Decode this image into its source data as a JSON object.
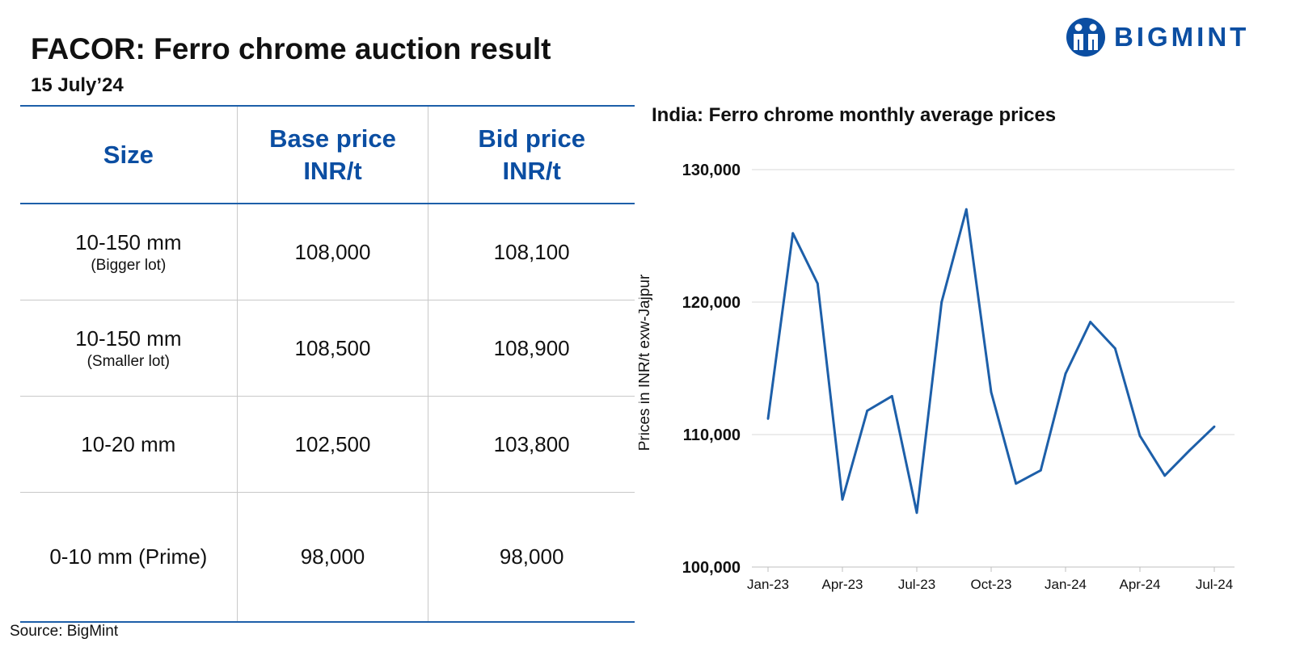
{
  "header": {
    "title": "FACOR: Ferro chrome auction result",
    "subtitle": "15 July’24",
    "brand": "BIGMINT"
  },
  "table": {
    "headers": [
      {
        "line1": "Size",
        "line2": ""
      },
      {
        "line1": "Base price",
        "line2": "INR/t"
      },
      {
        "line1": "Bid price",
        "line2": "INR/t"
      }
    ],
    "rows": [
      {
        "size": "10-150 mm",
        "note": "(Bigger lot)",
        "base": "108,000",
        "bid": "108,100"
      },
      {
        "size": "10-150 mm",
        "note": "(Smaller lot)",
        "base": "108,500",
        "bid": "108,900"
      },
      {
        "size": "10-20 mm",
        "note": "",
        "base": "102,500",
        "bid": "103,800"
      },
      {
        "size": "0-10 mm (Prime)",
        "note": "",
        "base": "98,000",
        "bid": "98,000"
      }
    ]
  },
  "source": "Source: BigMint",
  "colors": {
    "accent": "#0b4ea2",
    "line": "#1d5fa9",
    "grid": "#d9d9d9"
  },
  "chart_data": {
    "type": "line",
    "title": "India: Ferro chrome monthly average prices",
    "ylabel": "Prices in INR/t exw-Jajpur",
    "xlabel": "",
    "ylim": [
      100000,
      130000
    ],
    "yticks": [
      100000,
      110000,
      120000,
      130000
    ],
    "ytick_labels": [
      "100,000",
      "110,000",
      "120,000",
      "130,000"
    ],
    "xtick_labels": [
      "Jan-23",
      "Apr-23",
      "Jul-23",
      "Oct-23",
      "Jan-24",
      "Apr-24",
      "Jul-24"
    ],
    "xtick_index": [
      0,
      3,
      6,
      9,
      12,
      15,
      18
    ],
    "grid": true,
    "categories": [
      "Jan-23",
      "Feb-23",
      "Mar-23",
      "Apr-23",
      "May-23",
      "Jun-23",
      "Jul-23",
      "Aug-23",
      "Sep-23",
      "Oct-23",
      "Nov-23",
      "Dec-23",
      "Jan-24",
      "Feb-24",
      "Mar-24",
      "Apr-24",
      "May-24",
      "Jun-24",
      "Jul-24"
    ],
    "series": [
      {
        "values": [
          111200,
          125200,
          121400,
          105100,
          111800,
          112900,
          104100,
          120000,
          127000,
          113200,
          106300,
          107300,
          114600,
          118500,
          116500,
          109900,
          106900,
          108800,
          110600
        ]
      }
    ]
  }
}
